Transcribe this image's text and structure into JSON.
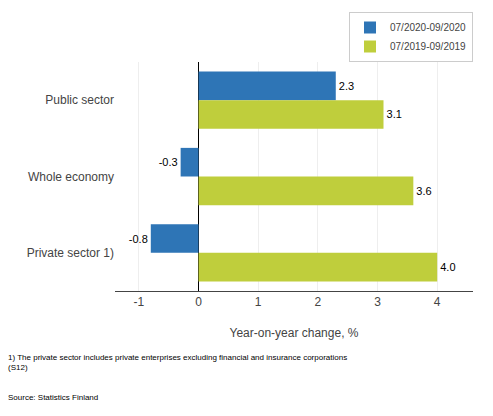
{
  "chart_data": {
    "type": "bar",
    "orientation": "horizontal",
    "categories": [
      "Public sector",
      "Whole economy",
      "Private sector 1)"
    ],
    "series": [
      {
        "name": "07/2020-09/2020",
        "color": "#2E75B6",
        "values": [
          2.3,
          -0.3,
          -0.8
        ],
        "value_labels": [
          "2.3",
          "-0.3",
          "-0.8"
        ]
      },
      {
        "name": "07/2019-09/2019",
        "color": "#BFCE3C",
        "values": [
          3.1,
          3.6,
          4.0
        ],
        "value_labels": [
          "3.1",
          "3.6",
          "4.0"
        ]
      }
    ],
    "xlabel": "Year-on-year change, %",
    "xlim": [
      -1.4,
      4.6
    ],
    "xticks": [
      -1,
      0,
      1,
      2,
      3,
      4
    ],
    "grid": true,
    "legend": "upper right",
    "data_labels": true,
    "annotations": [
      "1) The private sector includes private enterprises excluding financial and insurance corporations\n(S12)",
      "Source: Statistics Finland"
    ]
  }
}
